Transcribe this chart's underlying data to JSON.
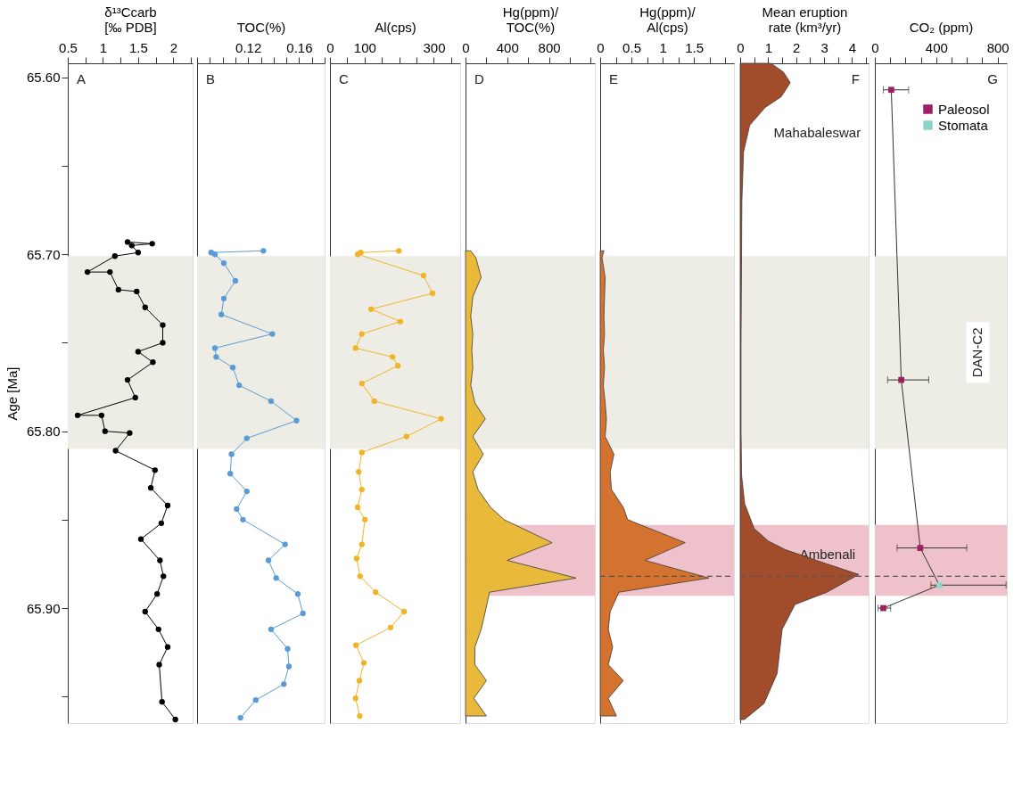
{
  "chart_data": [
    {
      "type": "line",
      "orientation": "horizontal",
      "xlabel": "δ¹³Ccarb\n[‰ PDB]",
      "ylabel": "Age [Ma]",
      "marker": "circle",
      "xlim": [
        0.5,
        2.275
      ],
      "xticks": [
        0.5,
        {
          "value": 0.75,
          "label": null
        },
        1,
        {
          "value": 1.25,
          "label": null
        },
        1.5,
        {
          "value": 1.75,
          "label": null
        },
        2,
        {
          "value": 2.25,
          "label": null
        }
      ],
      "ylim": [
        65.965,
        65.592
      ],
      "yticks": [
        {
          "value": 65.6,
          "label": "65.60"
        },
        {
          "value": 65.65,
          "label": null
        },
        {
          "value": 65.7,
          "label": "65.70"
        },
        {
          "value": 65.75,
          "label": null
        },
        {
          "value": 65.8,
          "label": "65.80"
        },
        {
          "value": 65.85,
          "label": null
        },
        {
          "value": 65.9,
          "label": "65.90"
        },
        {
          "value": 65.95,
          "label": null
        }
      ],
      "series": [
        {
          "color": "#000000",
          "x": [
            65.693,
            65.694,
            65.695,
            65.699,
            65.701,
            65.71,
            65.71,
            65.72,
            65.721,
            65.73,
            65.74,
            65.75,
            65.755,
            65.761,
            65.771,
            65.781,
            65.791,
            65.791,
            65.8,
            65.801,
            65.811,
            65.822,
            65.832,
            65.842,
            65.852,
            65.861,
            65.873,
            65.882,
            65.892,
            65.902,
            65.912,
            65.922,
            65.932,
            65.953,
            65.963
          ],
          "values": [
            1.35,
            1.7,
            1.41,
            1.5,
            1.17,
            0.78,
            1.1,
            1.22,
            1.48,
            1.6,
            1.85,
            1.85,
            1.5,
            1.71,
            1.35,
            1.46,
            0.64,
            0.98,
            1.03,
            1.38,
            1.18,
            1.74,
            1.68,
            1.92,
            1.83,
            1.54,
            1.81,
            1.86,
            1.77,
            1.6,
            1.79,
            1.92,
            1.8,
            1.84,
            2.03
          ]
        }
      ],
      "bands": [
        {
          "axis": "y",
          "from": 65.701,
          "to": 65.81,
          "color": "#eeede5"
        }
      ],
      "annotations": [
        "A"
      ]
    },
    {
      "type": "line",
      "orientation": "horizontal",
      "xlabel": "TOC(%)",
      "marker": "circle",
      "tick_labels": "x",
      "xlim": [
        0.08,
        0.18
      ],
      "xticks": [
        {
          "value": 0.08,
          "label": null
        },
        {
          "value": 0.09,
          "label": null
        },
        {
          "value": 0.1,
          "label": null
        },
        {
          "value": 0.11,
          "label": null
        },
        0.12,
        {
          "value": 0.13,
          "label": null
        },
        {
          "value": 0.14,
          "label": null
        },
        {
          "value": 0.15,
          "label": null
        },
        0.16,
        {
          "value": 0.17,
          "label": null
        },
        {
          "value": 0.18,
          "label": null
        }
      ],
      "ylim": [
        65.965,
        65.592
      ],
      "series": [
        {
          "color": "#5b9bd5",
          "x": [
            65.698,
            65.699,
            65.7,
            65.705,
            65.715,
            65.725,
            65.734,
            65.745,
            65.753,
            65.758,
            65.764,
            65.774,
            65.783,
            65.794,
            65.804,
            65.813,
            65.824,
            65.834,
            65.844,
            65.85,
            65.864,
            65.873,
            65.883,
            65.892,
            65.903,
            65.912,
            65.923,
            65.933,
            65.943,
            65.952,
            65.962
          ],
          "values": [
            0.132,
            0.091,
            0.094,
            0.101,
            0.11,
            0.101,
            0.099,
            0.139,
            0.094,
            0.095,
            0.108,
            0.113,
            0.138,
            0.158,
            0.119,
            0.107,
            0.106,
            0.119,
            0.111,
            0.116,
            0.149,
            0.136,
            0.142,
            0.159,
            0.163,
            0.138,
            0.151,
            0.152,
            0.148,
            0.126,
            0.114
          ]
        }
      ],
      "bands": [
        {
          "axis": "y",
          "from": 65.701,
          "to": 65.81,
          "color": "#eeede5"
        }
      ],
      "annotations": [
        "B"
      ]
    },
    {
      "type": "line",
      "orientation": "horizontal",
      "xlabel": "Al(cps)",
      "marker": "circle",
      "tick_labels": "x",
      "xlim": [
        0,
        376
      ],
      "xticks": [
        0,
        {
          "value": 50,
          "label": null
        },
        100,
        {
          "value": 150,
          "label": null
        },
        {
          "value": 200,
          "label": null
        },
        {
          "value": 250,
          "label": null
        },
        300,
        {
          "value": 350,
          "label": null
        }
      ],
      "ylim": [
        65.965,
        65.592
      ],
      "series": [
        {
          "color": "#f0b429",
          "x": [
            65.698,
            65.699,
            65.7,
            65.712,
            65.722,
            65.731,
            65.738,
            65.745,
            65.753,
            65.758,
            65.763,
            65.773,
            65.783,
            65.793,
            65.803,
            65.812,
            65.823,
            65.833,
            65.843,
            65.85,
            65.864,
            65.872,
            65.882,
            65.891,
            65.902,
            65.911,
            65.921,
            65.931,
            65.941,
            65.951,
            65.961
          ],
          "values": [
            199,
            89,
            80,
            270,
            296,
            119,
            203,
            92,
            74,
            181,
            196,
            92,
            128,
            321,
            221,
            92,
            83,
            92,
            80,
            101,
            92,
            77,
            87,
            132,
            214,
            175,
            75,
            98,
            85,
            74,
            86
          ]
        }
      ],
      "bands": [
        {
          "axis": "y",
          "from": 65.701,
          "to": 65.81,
          "color": "#eeede5"
        }
      ],
      "annotations": [
        "C"
      ]
    },
    {
      "type": "area",
      "orientation": "horizontal",
      "xlabel": "Hg(ppm)/\nTOC(%)",
      "tick_labels": "x",
      "xlim": [
        0,
        1240
      ],
      "xticks": [
        0,
        {
          "value": 200,
          "label": null
        },
        400,
        {
          "value": 600,
          "label": null
        },
        800,
        {
          "value": 1000,
          "label": null
        },
        {
          "value": 1200,
          "label": null
        }
      ],
      "ylim": [
        65.965,
        65.592
      ],
      "series": [
        {
          "color": "#e9b93c",
          "x": [
            65.698,
            65.702,
            65.713,
            65.724,
            65.735,
            65.745,
            65.754,
            65.764,
            65.774,
            65.784,
            65.793,
            65.803,
            65.813,
            65.823,
            65.833,
            65.843,
            65.85,
            65.863,
            65.873,
            65.883,
            65.891,
            65.902,
            65.912,
            65.922,
            65.932,
            65.941,
            65.951,
            65.961
          ],
          "values": [
            50,
            100,
            150,
            70,
            50,
            70,
            60,
            70,
            50,
            90,
            190,
            70,
            170,
            70,
            120,
            240,
            370,
            830,
            400,
            1060,
            230,
            190,
            150,
            90,
            90,
            200,
            80,
            200
          ]
        }
      ],
      "bands": [
        {
          "axis": "y",
          "from": 65.701,
          "to": 65.81,
          "color": "#eeede5"
        },
        {
          "axis": "y",
          "from": 65.853,
          "to": 65.893,
          "color": "#efc2cb"
        }
      ],
      "annotations": [
        "D"
      ]
    },
    {
      "type": "area",
      "orientation": "horizontal",
      "xlabel": "Hg(ppm)/\nAl(cps)",
      "tick_labels": "x",
      "xlim": [
        0,
        2.14
      ],
      "xticks": [
        0,
        {
          "value": 0.25,
          "label": null
        },
        0.5,
        {
          "value": 0.75,
          "label": null
        },
        1,
        {
          "value": 1.25,
          "label": null
        },
        1.5,
        {
          "value": 1.75,
          "label": null
        },
        {
          "value": 2,
          "label": null
        }
      ],
      "ylim": [
        65.965,
        65.592
      ],
      "series": [
        {
          "color": "#d4722f",
          "x": [
            65.698,
            65.702,
            65.713,
            65.724,
            65.735,
            65.745,
            65.754,
            65.764,
            65.774,
            65.784,
            65.793,
            65.803,
            65.813,
            65.823,
            65.833,
            65.843,
            65.85,
            65.863,
            65.873,
            65.883,
            65.891,
            65.902,
            65.912,
            65.922,
            65.932,
            65.941,
            65.951,
            65.961
          ],
          "values": [
            0.06,
            0.03,
            0.08,
            0.07,
            0.06,
            0.07,
            0.05,
            0.07,
            0.05,
            0.08,
            0.1,
            0.08,
            0.22,
            0.16,
            0.18,
            0.37,
            0.44,
            1.36,
            0.72,
            1.74,
            0.3,
            0.16,
            0.13,
            0.2,
            0.13,
            0.37,
            0.13,
            0.26
          ]
        }
      ],
      "bands": [
        {
          "axis": "y",
          "from": 65.701,
          "to": 65.81,
          "color": "#eeede5"
        },
        {
          "axis": "y",
          "from": 65.853,
          "to": 65.893,
          "color": "#efc2cb"
        }
      ],
      "ref_lines": [
        {
          "axis": "y",
          "value": 65.882,
          "line_style": "dashed",
          "color": "#555555"
        }
      ],
      "annotations": [
        "E"
      ]
    },
    {
      "type": "area",
      "orientation": "horizontal",
      "xlabel": "Mean eruption\nrate (km³/yr)",
      "tick_labels": "x",
      "xlim": [
        0,
        4.59
      ],
      "xticks": [
        0,
        {
          "value": 0.5,
          "label": null
        },
        1,
        {
          "value": 1.5,
          "label": null
        },
        2,
        {
          "value": 2.5,
          "label": null
        },
        3,
        {
          "value": 3.5,
          "label": null
        },
        4,
        {
          "value": 4.5,
          "label": null
        }
      ],
      "ylim": [
        65.965,
        65.592
      ],
      "series": [
        {
          "color": "#a14c2b",
          "x": [
            65.592,
            65.597,
            65.603,
            65.611,
            65.617,
            65.627,
            65.642,
            65.67,
            65.75,
            65.8,
            65.825,
            65.841,
            65.855,
            65.862,
            65.867,
            65.875,
            65.881,
            65.891,
            65.898,
            65.912,
            65.937,
            65.954,
            65.963
          ],
          "values": [
            1.1,
            1.55,
            1.79,
            1.46,
            0.89,
            0.34,
            0.12,
            0.06,
            0.03,
            0.03,
            0.05,
            0.16,
            0.5,
            1.0,
            1.62,
            3.1,
            4.24,
            3.1,
            1.96,
            1.5,
            1.32,
            0.85,
            0.15
          ]
        }
      ],
      "bands": [
        {
          "axis": "y",
          "from": 65.701,
          "to": 65.81,
          "color": "#eeede5"
        },
        {
          "axis": "y",
          "from": 65.853,
          "to": 65.893,
          "color": "#efc2cb",
          "label": "Ambenali"
        }
      ],
      "ref_lines": [
        {
          "axis": "y",
          "value": 65.882,
          "line_style": "dashed",
          "color": "#555555"
        }
      ],
      "annotations": [
        "F",
        "Mahabaleswar"
      ]
    },
    {
      "type": "scatter",
      "orientation": "horizontal",
      "xlabel": "CO₂ (ppm)",
      "marker": "square",
      "tick_labels": "x",
      "legend": "top right",
      "xlim": [
        0,
        860
      ],
      "xticks": [
        0,
        {
          "value": 100,
          "label": null
        },
        {
          "value": 200,
          "label": null
        },
        {
          "value": 300,
          "label": null
        },
        400,
        {
          "value": 500,
          "label": null
        },
        {
          "value": 600,
          "label": null
        },
        {
          "value": 700,
          "label": null
        },
        800
      ],
      "ylim": [
        65.965,
        65.592
      ],
      "series": [
        {
          "type": "line",
          "marker": "none",
          "color": "#333333",
          "x": [
            65.607,
            65.771,
            65.866,
            65.887,
            65.9
          ],
          "values": [
            107,
            172,
            296,
            420,
            55
          ]
        },
        {
          "name": "Paleosol",
          "color": "#9e1f63",
          "x": [
            65.607,
            65.771,
            65.866,
            65.9
          ],
          "values": [
            107,
            172,
            296,
            55
          ],
          "errors": [
            [
              55,
              220
            ],
            [
              83,
              351
            ],
            [
              145,
              599
            ],
            [
              21,
              103
            ]
          ]
        },
        {
          "name": "Stomata",
          "color": "#8fd3c7",
          "x": [
            65.887
          ],
          "values": [
            420
          ],
          "errors": [
            [
              365,
              855
            ]
          ]
        }
      ],
      "bands": [
        {
          "axis": "y",
          "from": 65.701,
          "to": 65.81,
          "color": "#eeede5",
          "label": "DAN-C2"
        },
        {
          "axis": "y",
          "from": 65.853,
          "to": 65.893,
          "color": "#efc2cb"
        }
      ],
      "ref_lines": [
        {
          "axis": "y",
          "value": 65.882,
          "line_style": "dashed",
          "color": "#555555"
        }
      ],
      "annotations": [
        "G"
      ]
    }
  ]
}
